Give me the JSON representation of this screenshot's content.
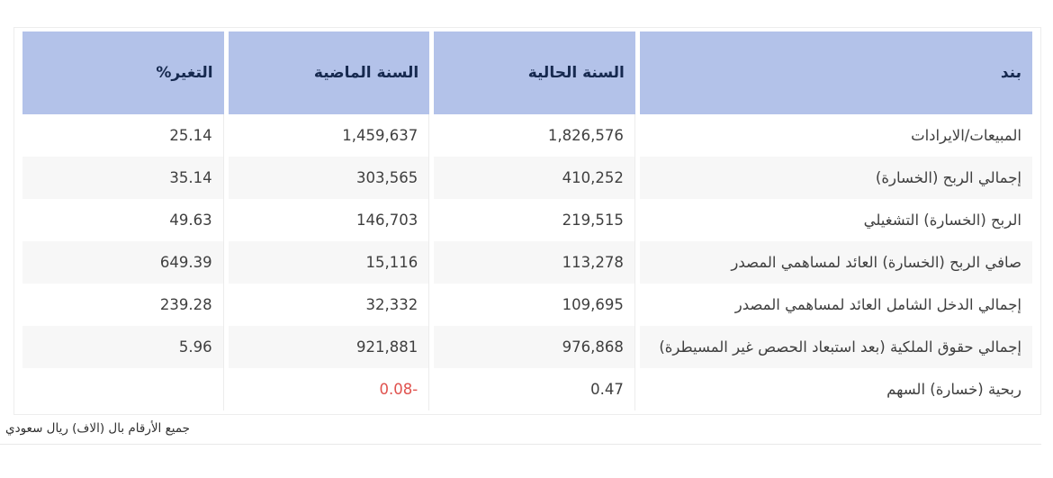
{
  "colors": {
    "header_bg": "#b3c2e9",
    "header_text": "#16294f",
    "positive_value": "#27ab5f",
    "negative_value": "#e0524e",
    "row_stripe": "#f7f7f7",
    "divider": "#ececec"
  },
  "table": {
    "headers": {
      "item": "بند",
      "current": "السنة الحالية",
      "previous": "السنة الماضية",
      "change": "التغير%"
    },
    "rows": [
      {
        "item": "المبيعات/الايرادات",
        "current": "1,826,576",
        "previous": "1,459,637",
        "change": "25.14"
      },
      {
        "item": "إجمالي الربح (الخسارة)",
        "current": "410,252",
        "previous": "303,565",
        "change": "35.14"
      },
      {
        "item": "الربح (الخسارة) التشغيلي",
        "current": "219,515",
        "previous": "146,703",
        "change": "49.63"
      },
      {
        "item": "صافي الربح (الخسارة) العائد لمساهمي المصدر",
        "current": "113,278",
        "previous": "15,116",
        "change": "649.39"
      },
      {
        "item": "إجمالي الدخل الشامل العائد لمساهمي المصدر",
        "current": "109,695",
        "previous": "32,332",
        "change": "239.28"
      },
      {
        "item": "إجمالي حقوق الملكية (بعد استبعاد الحصص غير المسيطرة)",
        "current": "976,868",
        "previous": "921,881",
        "change": "5.96"
      },
      {
        "item": "ربحية (خسارة) السهم",
        "current": "0.47",
        "previous": "-0.08",
        "change": ""
      }
    ],
    "footnote": "جميع الأرقام بال (الاف) ريال سعودي"
  }
}
